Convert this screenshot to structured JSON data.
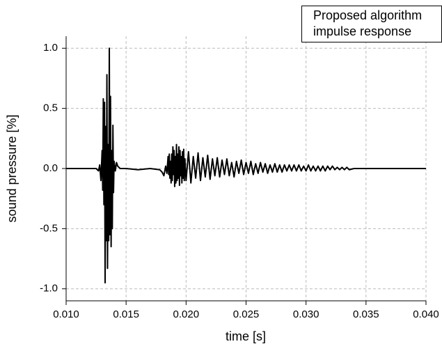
{
  "chart_data": {
    "type": "line",
    "xlabel": "time [s]",
    "ylabel": "sound pressure [%]",
    "xlim": [
      0.01,
      0.04
    ],
    "xticks": [
      {
        "value": 0.01,
        "label": "0.010"
      },
      0.015,
      {
        "value": 0.02,
        "label": "0.020"
      },
      0.025,
      {
        "value": 0.03,
        "label": "0.030"
      },
      0.035,
      {
        "value": 0.04,
        "label": "0.040"
      }
    ],
    "ylim": [
      -1.1,
      1.1
    ],
    "yticks": [
      {
        "value": -1,
        "label": "-1.0"
      },
      -0.5,
      {
        "value": 0,
        "label": "0.0"
      },
      0.5,
      {
        "value": 1,
        "label": "1.0"
      }
    ],
    "grid": true,
    "legend": "upper right",
    "series": [
      {
        "name": "Proposed algorithm impulse response",
        "color": "#000000",
        "x": [
          0.01,
          0.0125,
          0.0127,
          0.0128,
          0.0129,
          0.013,
          0.01305,
          0.0131,
          0.01315,
          0.0132,
          0.01325,
          0.0133,
          0.01335,
          0.0134,
          0.01345,
          0.0135,
          0.01355,
          0.0136,
          0.01365,
          0.0137,
          0.01375,
          0.0138,
          0.01385,
          0.0139,
          0.01395,
          0.014,
          0.0141,
          0.0142,
          0.0143,
          0.0145,
          0.015,
          0.016,
          0.017,
          0.0178,
          0.018,
          0.01815,
          0.0183,
          0.0184,
          0.0185,
          0.01855,
          0.0186,
          0.01865,
          0.0187,
          0.01875,
          0.0188,
          0.01885,
          0.0189,
          0.01895,
          0.019,
          0.01905,
          0.0191,
          0.01915,
          0.0192,
          0.01925,
          0.0193,
          0.01935,
          0.0194,
          0.01945,
          0.0195,
          0.01955,
          0.0196,
          0.01965,
          0.0197,
          0.01975,
          0.0198,
          0.01985,
          0.0199,
          0.02,
          0.0202,
          0.0204,
          0.0206,
          0.0208,
          0.021,
          0.0212,
          0.0214,
          0.0216,
          0.0218,
          0.022,
          0.0222,
          0.0224,
          0.0226,
          0.0228,
          0.023,
          0.0232,
          0.0234,
          0.0236,
          0.0238,
          0.024,
          0.0242,
          0.0244,
          0.0246,
          0.0248,
          0.025,
          0.0252,
          0.0254,
          0.0256,
          0.0258,
          0.026,
          0.0262,
          0.0264,
          0.0266,
          0.0268,
          0.027,
          0.0272,
          0.0274,
          0.0276,
          0.0278,
          0.028,
          0.0282,
          0.0284,
          0.0286,
          0.0288,
          0.029,
          0.0292,
          0.0294,
          0.0296,
          0.0298,
          0.03,
          0.0302,
          0.0304,
          0.0306,
          0.0308,
          0.031,
          0.0312,
          0.0314,
          0.0316,
          0.0318,
          0.032,
          0.0322,
          0.0324,
          0.0326,
          0.0328,
          0.033,
          0.0332,
          0.0334,
          0.0336,
          0.034,
          0.04
        ],
        "values": [
          0,
          0,
          -0.02,
          0.03,
          -0.1,
          0.15,
          -0.18,
          0.58,
          -0.3,
          0.55,
          -0.95,
          0.35,
          -0.6,
          0.78,
          -0.83,
          0.2,
          -0.6,
          1.0,
          -0.55,
          0.6,
          -0.65,
          0.15,
          -0.5,
          0.36,
          -0.2,
          0.06,
          -0.02,
          0.05,
          0.02,
          0,
          0,
          -0.01,
          0,
          -0.01,
          -0.03,
          -0.06,
          0.02,
          -0.04,
          0.1,
          -0.05,
          0.12,
          -0.08,
          0.06,
          -0.12,
          0.12,
          -0.1,
          0.18,
          -0.05,
          0.15,
          -0.15,
          0.1,
          -0.12,
          0.2,
          -0.1,
          0.12,
          -0.08,
          0.18,
          -0.14,
          0.15,
          -0.06,
          0.1,
          -0.12,
          0.14,
          -0.08,
          0.16,
          -0.1,
          0.08,
          -0.1,
          0.14,
          -0.12,
          0.1,
          -0.08,
          0.13,
          -0.1,
          0.09,
          -0.07,
          0.11,
          -0.09,
          0.08,
          -0.06,
          0.09,
          -0.07,
          0.07,
          -0.05,
          0.08,
          -0.06,
          0.05,
          -0.07,
          0.06,
          -0.04,
          0.07,
          -0.05,
          0.05,
          -0.04,
          0.06,
          -0.05,
          0.04,
          -0.04,
          0.05,
          -0.03,
          0.04,
          -0.04,
          0.03,
          -0.03,
          0.04,
          -0.03,
          0.03,
          -0.03,
          0.03,
          -0.02,
          0.03,
          -0.02,
          0.03,
          -0.02,
          0.03,
          -0.02,
          0.02,
          -0.02,
          0.03,
          -0.02,
          0.02,
          -0.02,
          0.02,
          -0.02,
          0.02,
          -0.02,
          0.02,
          -0.01,
          0.02,
          -0.01,
          0.01,
          -0.01,
          0.01,
          -0.01,
          0.01,
          -0.01,
          0,
          0
        ]
      }
    ]
  }
}
